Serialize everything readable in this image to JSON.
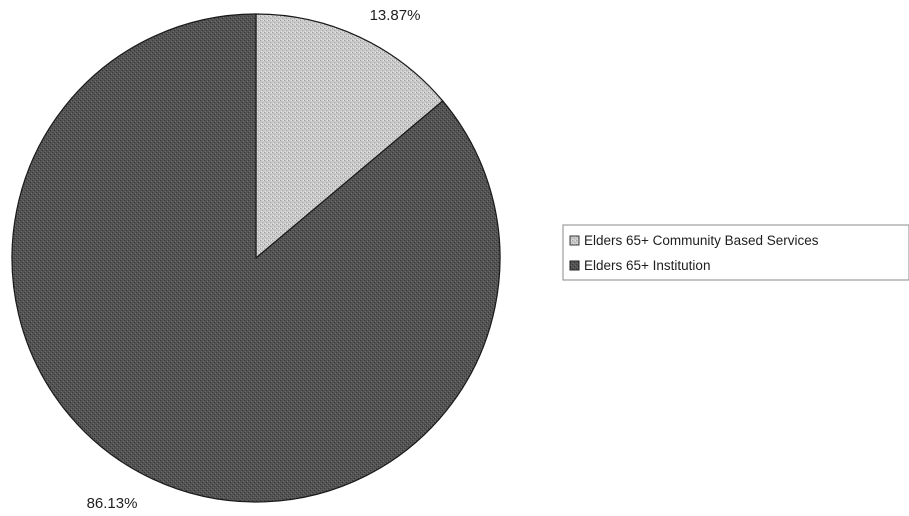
{
  "chart_data": {
    "type": "pie",
    "title": "",
    "slices": [
      {
        "label": "Elders 65+ Community Based Services",
        "value": 13.87,
        "data_label": "13.87%",
        "color": "#c4c4c4"
      },
      {
        "label": "Elders 65+ Institution",
        "value": 86.13,
        "data_label": "86.13%",
        "color": "#4f4f4f"
      }
    ],
    "legend_placement": "right",
    "start_angle": "12 o'clock",
    "direction": "clockwise"
  }
}
